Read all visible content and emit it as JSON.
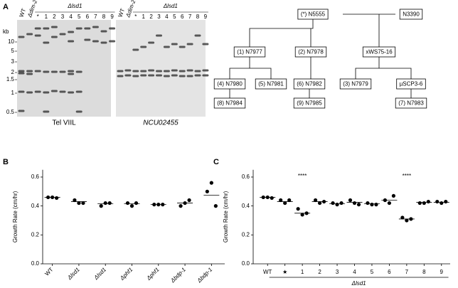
{
  "panel_a": {
    "label": "A",
    "kb_unit": "kb",
    "kb_labels": [
      "10",
      "5",
      "3",
      "2",
      "1.5",
      "1",
      "0.5"
    ],
    "lanes": [
      "WT",
      "Δdim-2",
      "*",
      "1",
      "2",
      "3",
      "4",
      "5",
      "6",
      "7",
      "8",
      "9"
    ],
    "lane_group": "Δlsd1",
    "gels": [
      {
        "caption": "Tel VIIL"
      },
      {
        "caption": "NCU02455"
      }
    ],
    "pedigree": {
      "nodes": [
        {
          "label": "(*) N5555"
        },
        {
          "label": "N3390"
        },
        {
          "label": "(1) N7977"
        },
        {
          "label": "(2) N7978"
        },
        {
          "label": "xWS75-16"
        },
        {
          "label": "(4) N7980"
        },
        {
          "label": "(5) N7981"
        },
        {
          "label": "(6) N7982"
        },
        {
          "label": "(3) N7979"
        },
        {
          "label": "µSCP3-6"
        },
        {
          "label": "(8) N7984"
        },
        {
          "label": "(9) N7985"
        },
        {
          "label": "(7) N7983"
        }
      ]
    }
  },
  "chart_data": [
    {
      "type": "dot",
      "panel": "B",
      "y_label": "Growth Rate (cm/hr)",
      "categories": [
        "WT",
        "Δlsd1",
        "Δlsd1",
        "Δphf1",
        "Δphf1",
        "Δbdp-1",
        "Δbdp-1"
      ],
      "points": [
        [
          0.46,
          0.46,
          0.455
        ],
        [
          0.44,
          0.42,
          0.42
        ],
        [
          0.4,
          0.42,
          0.42
        ],
        [
          0.42,
          0.4,
          0.42
        ],
        [
          0.41,
          0.41,
          0.41
        ],
        [
          0.4,
          0.42,
          0.44
        ],
        [
          0.5,
          0.56,
          0.4
        ]
      ],
      "means": [
        0.46,
        0.43,
        0.415,
        0.415,
        0.41,
        0.42,
        0.475
      ],
      "color": "#000000",
      "ylim": [
        0,
        0.65
      ],
      "yticks": [
        {
          "value": 0,
          "label": "0.0"
        },
        0.2,
        0.4,
        0.6
      ]
    },
    {
      "type": "dot",
      "panel": "C",
      "y_label": "Growth Rate (cm/hr)",
      "categories": [
        "WT",
        "★",
        "1",
        "2",
        "3",
        "4",
        "5",
        "6",
        "7",
        "8",
        "9"
      ],
      "points": [
        [
          0.46,
          0.46,
          0.455
        ],
        [
          0.44,
          0.42,
          0.44
        ],
        [
          0.38,
          0.34,
          0.35
        ],
        [
          0.44,
          0.42,
          0.43
        ],
        [
          0.42,
          0.41,
          0.42
        ],
        [
          0.44,
          0.42,
          0.41
        ],
        [
          0.42,
          0.41,
          0.41
        ],
        [
          0.44,
          0.42,
          0.47
        ],
        [
          0.32,
          0.3,
          0.31
        ],
        [
          0.42,
          0.42,
          0.43
        ],
        [
          0.43,
          0.42,
          0.43
        ]
      ],
      "means": [
        0.46,
        0.43,
        0.35,
        0.43,
        0.415,
        0.425,
        0.415,
        0.44,
        0.31,
        0.425,
        0.425
      ],
      "color": "#000000",
      "annotations": [
        {
          "category": 2,
          "text": "****"
        },
        {
          "category": 8,
          "text": "****"
        }
      ],
      "group_label": "Δlsd1",
      "ylim": [
        0,
        0.65
      ],
      "yticks": [
        {
          "value": 0,
          "label": "0.0"
        },
        0.2,
        0.4,
        0.6
      ]
    }
  ]
}
